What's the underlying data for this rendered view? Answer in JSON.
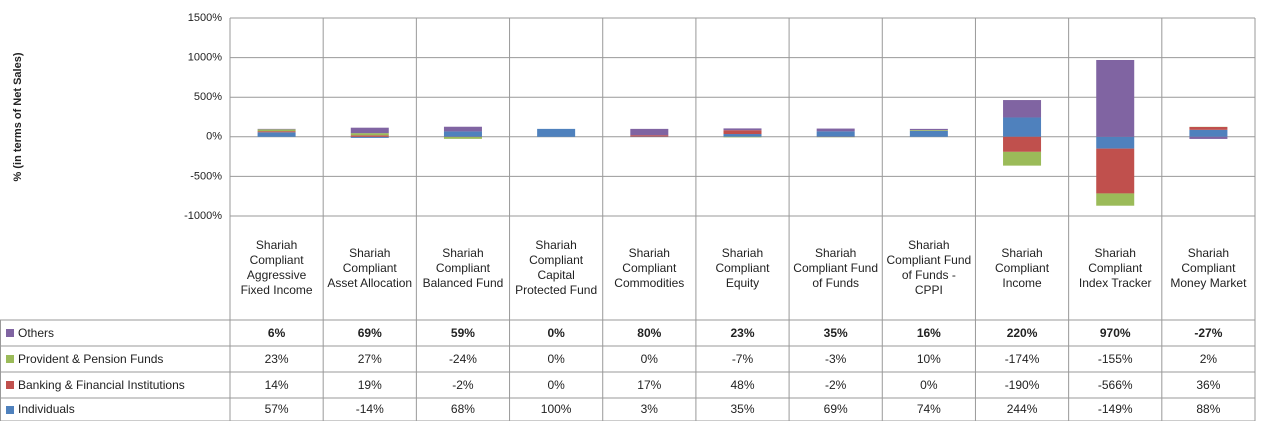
{
  "chart_data": {
    "type": "bar",
    "stacked": true,
    "y_label": "% (in terms of Net Sales)",
    "categories": [
      "Shariah Compliant Aggressive Fixed Income",
      "Shariah Compliant Asset Allocation",
      "Shariah Compliant Balanced Fund",
      "Shariah Compliant Capital Protected Fund",
      "Shariah Compliant Commodities",
      "Shariah Compliant Equity",
      "Shariah Compliant Fund of Funds",
      "Shariah Compliant Fund of Funds - CPPI",
      "Shariah Compliant Income",
      "Shariah Compliant Index Tracker",
      "Shariah Compliant Money Market"
    ],
    "series": [
      {
        "name": "Others",
        "color": "#8064a2",
        "values": [
          6,
          69,
          59,
          0,
          80,
          23,
          35,
          16,
          220,
          970,
          -27
        ],
        "value_labels": [
          "6%",
          "69%",
          "59%",
          "0%",
          "80%",
          "23%",
          "35%",
          "16%",
          "220%",
          "970%",
          "-27%"
        ]
      },
      {
        "name": "Provident & Pension Funds",
        "color": "#9bbb59",
        "values": [
          23,
          27,
          -24,
          0,
          0,
          -7,
          -3,
          10,
          -174,
          -155,
          2
        ],
        "value_labels": [
          "23%",
          "27%",
          "-24%",
          "0%",
          "0%",
          "-7%",
          "-3%",
          "10%",
          "-174%",
          "-155%",
          "2%"
        ]
      },
      {
        "name": "Banking & Financial Institutions",
        "color": "#c0504d",
        "values": [
          14,
          19,
          -2,
          0,
          17,
          48,
          -2,
          0,
          -190,
          -566,
          36
        ],
        "value_labels": [
          "14%",
          "19%",
          "-2%",
          "0%",
          "17%",
          "48%",
          "-2%",
          "0%",
          "-190%",
          "-566%",
          "36%"
        ]
      },
      {
        "name": "Individuals",
        "color": "#4f81bd",
        "values": [
          57,
          -14,
          68,
          100,
          3,
          35,
          69,
          74,
          244,
          -149,
          88
        ],
        "value_labels": [
          "57%",
          "-14%",
          "68%",
          "100%",
          "3%",
          "35%",
          "69%",
          "74%",
          "244%",
          "-149%",
          "88%"
        ]
      }
    ],
    "ylim": [
      -1000,
      1500
    ],
    "yticks": [
      {
        "value": -1000,
        "label": "-1000%"
      },
      {
        "value": -500,
        "label": "-500%"
      },
      {
        "value": 0,
        "label": "0%"
      },
      {
        "value": 500,
        "label": "500%"
      },
      {
        "value": 1000,
        "label": "1000%"
      },
      {
        "value": 1500,
        "label": "1500%"
      }
    ],
    "grid": true
  }
}
